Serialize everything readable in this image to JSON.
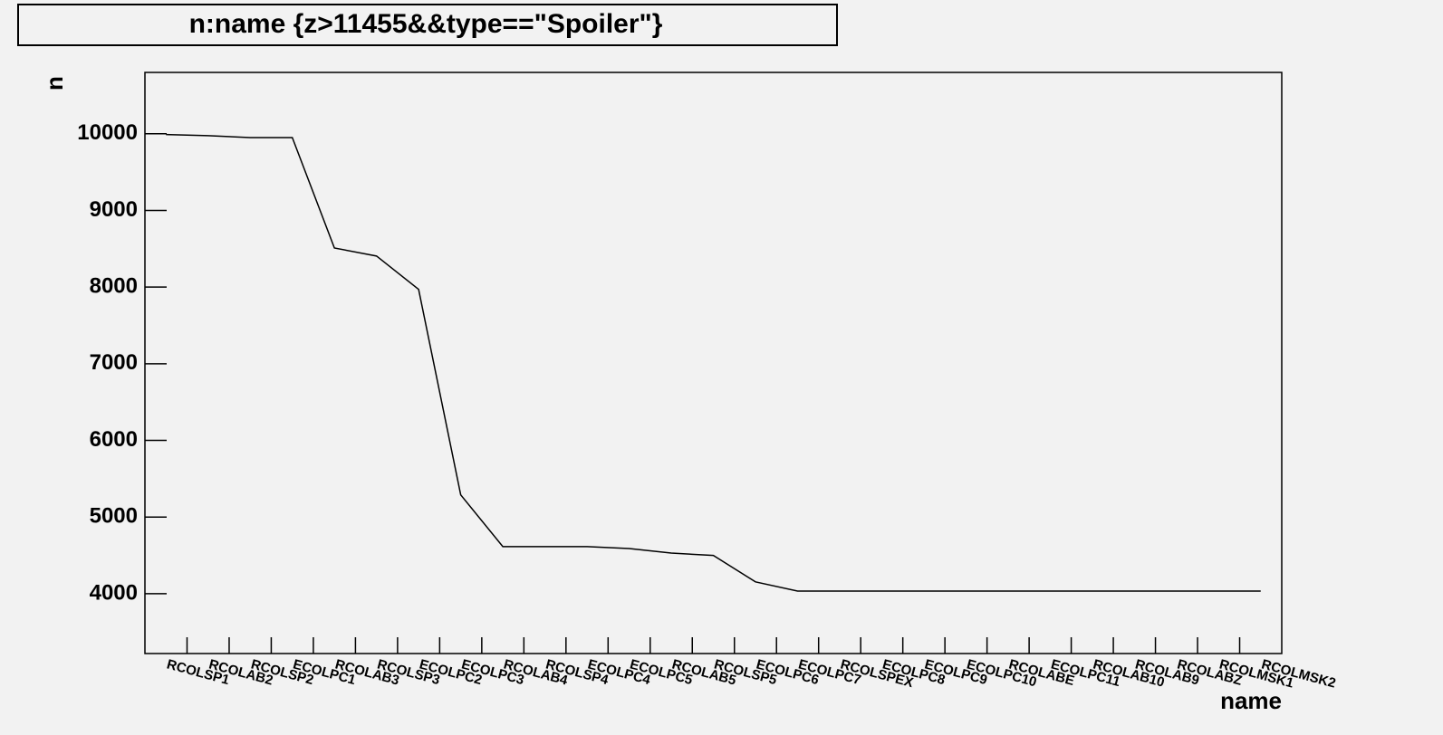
{
  "chart_data": {
    "type": "line",
    "title": "n:name {z>11455&&type==\"Spoiler\"}",
    "x_label": "name",
    "y_label": "n",
    "categories": [
      "RCOLSP1",
      "RCOLAB2",
      "RCOLSP2",
      "ECOLPC1",
      "RCOLAB3",
      "RCOLSP3",
      "ECOLPC2",
      "ECOLPC3",
      "RCOLAB4",
      "RCOLSP4",
      "ECOLPC4",
      "ECOLPC5",
      "RCOLAB5",
      "RCOLSP5",
      "ECOLPC6",
      "ECOLPC7",
      "RCOLSPEX",
      "ECOLPC8",
      "ECOLPC9",
      "ECOLPC10",
      "RCOLABE",
      "ECOLPC11",
      "RCOLAB10",
      "RCOLAB9",
      "RCOLABZ",
      "RCOLMSK1",
      "RCOLMSK2"
    ],
    "series": [
      {
        "name": "n",
        "color": "#000000",
        "values": [
          9990,
          9975,
          9950,
          9950,
          8510,
          8405,
          7970,
          5290,
          4615,
          4615,
          4615,
          4590,
          4530,
          4500,
          4155,
          4035,
          4035,
          4035,
          4035,
          4035,
          4035,
          4035,
          4035,
          4035,
          4035,
          4035,
          4035
        ]
      }
    ],
    "ylim": [
      3220,
      10800
    ],
    "yticks": [
      4000,
      5000,
      6000,
      7000,
      8000,
      9000,
      10000
    ],
    "grid": false
  }
}
